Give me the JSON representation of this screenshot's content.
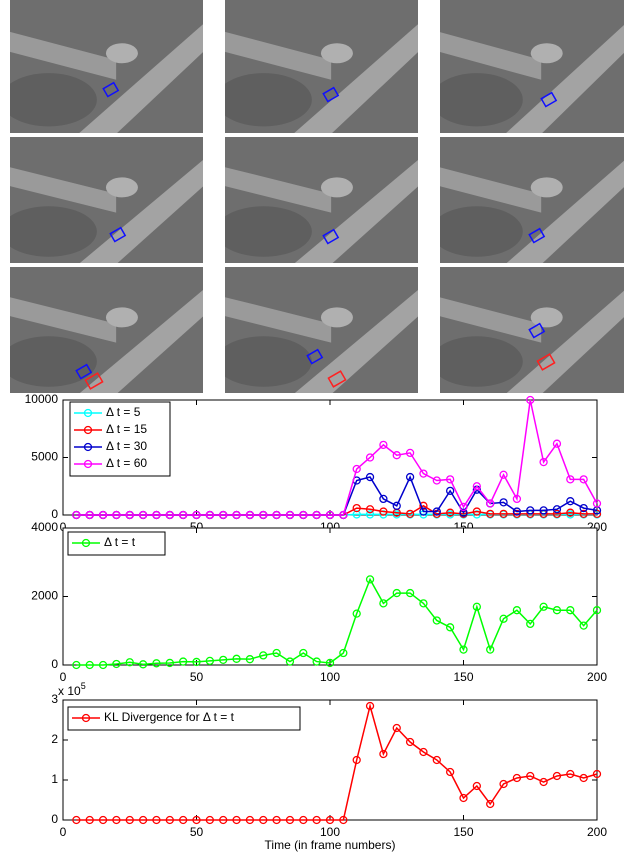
{
  "chart_data": [
    {
      "type": "line",
      "x": [
        5,
        10,
        15,
        20,
        25,
        30,
        35,
        40,
        45,
        50,
        55,
        60,
        65,
        70,
        75,
        80,
        85,
        90,
        95,
        100,
        105,
        110,
        115,
        120,
        125,
        130,
        135,
        140,
        145,
        150,
        155,
        160,
        165,
        170,
        175,
        180,
        185,
        190,
        195,
        200
      ],
      "xlim": [
        0,
        200
      ],
      "xticks": [
        0,
        50,
        100,
        150,
        200
      ],
      "ylim": [
        0,
        10000
      ],
      "yticks": [
        0,
        5000,
        10000
      ],
      "legend": "upper left",
      "series": [
        {
          "name": "Δ t = 5",
          "color": "#00ffff",
          "values": [
            0,
            0,
            0,
            0,
            0,
            0,
            0,
            0,
            0,
            0,
            0,
            0,
            0,
            0,
            0,
            0,
            0,
            0,
            0,
            0,
            0,
            50,
            50,
            50,
            50,
            50,
            50,
            50,
            50,
            50,
            50,
            50,
            50,
            50,
            50,
            50,
            50,
            50,
            50,
            50
          ]
        },
        {
          "name": "Δ t = 15",
          "color": "#ff0000",
          "values": [
            0,
            0,
            0,
            0,
            0,
            0,
            0,
            0,
            0,
            0,
            0,
            0,
            0,
            0,
            0,
            0,
            0,
            0,
            0,
            0,
            0,
            600,
            500,
            300,
            200,
            100,
            800,
            100,
            200,
            100,
            300,
            100,
            100,
            100,
            100,
            100,
            100,
            200,
            100,
            100
          ]
        },
        {
          "name": "Δ t = 30",
          "color": "#0000cc",
          "values": [
            0,
            0,
            0,
            0,
            0,
            0,
            0,
            0,
            0,
            0,
            0,
            0,
            0,
            0,
            0,
            0,
            0,
            0,
            0,
            0,
            0,
            3000,
            3300,
            1400,
            800,
            3300,
            300,
            300,
            2100,
            200,
            2200,
            1000,
            1100,
            300,
            400,
            400,
            500,
            1200,
            600,
            400
          ]
        },
        {
          "name": "Δ t = 60",
          "color": "#ff00ff",
          "values": [
            0,
            0,
            0,
            0,
            0,
            0,
            0,
            0,
            0,
            0,
            0,
            0,
            0,
            0,
            0,
            0,
            0,
            0,
            0,
            0,
            0,
            4000,
            5000,
            6100,
            5200,
            5400,
            3600,
            3000,
            3100,
            700,
            2500,
            1000,
            3500,
            1400,
            10000,
            4600,
            6200,
            3100,
            3100,
            1000
          ]
        }
      ]
    },
    {
      "type": "line",
      "x": [
        5,
        10,
        15,
        20,
        25,
        30,
        35,
        40,
        45,
        50,
        55,
        60,
        65,
        70,
        75,
        80,
        85,
        90,
        95,
        100,
        105,
        110,
        115,
        120,
        125,
        130,
        135,
        140,
        145,
        150,
        155,
        160,
        165,
        170,
        175,
        180,
        185,
        190,
        195,
        200
      ],
      "xlim": [
        0,
        200
      ],
      "xticks": [
        0,
        50,
        100,
        150,
        200
      ],
      "ylim": [
        0,
        4000
      ],
      "yticks": [
        0,
        2000,
        4000
      ],
      "legend": "upper left",
      "series": [
        {
          "name": "Δ t = t",
          "color": "#00ff00",
          "values": [
            0,
            0,
            0,
            30,
            80,
            20,
            50,
            60,
            100,
            90,
            120,
            150,
            180,
            170,
            280,
            350,
            100,
            350,
            100,
            60,
            350,
            1500,
            2500,
            1800,
            2100,
            2100,
            1800,
            1300,
            1100,
            450,
            1700,
            450,
            1350,
            1600,
            1200,
            1700,
            1600,
            1600,
            1150,
            1600
          ]
        }
      ]
    },
    {
      "type": "line",
      "x": [
        5,
        10,
        15,
        20,
        25,
        30,
        35,
        40,
        45,
        50,
        55,
        60,
        65,
        70,
        75,
        80,
        85,
        90,
        95,
        100,
        105,
        110,
        115,
        120,
        125,
        130,
        135,
        140,
        145,
        150,
        155,
        160,
        165,
        170,
        175,
        180,
        185,
        190,
        195,
        200
      ],
      "xlim": [
        0,
        200
      ],
      "xticks": [
        0,
        50,
        100,
        150,
        200
      ],
      "ylim": [
        0,
        3
      ],
      "yticks": [
        0,
        1,
        2,
        3
      ],
      "legend": "upper left",
      "y_scale_label": {
        "base": "x 10",
        "exponent": "5"
      },
      "x_label": "Time (in frame numbers)",
      "series": [
        {
          "name": "KL Divergence for Δ t = t",
          "color": "#ff0000",
          "values": [
            0,
            0,
            0,
            0,
            0,
            0,
            0,
            0,
            0,
            0,
            0,
            0,
            0,
            0,
            0,
            0,
            0,
            0,
            0,
            0,
            0,
            1.5,
            2.85,
            1.65,
            2.3,
            1.95,
            1.7,
            1.5,
            1.2,
            0.55,
            0.85,
            0.4,
            0.9,
            1.05,
            1.1,
            0.95,
            1.1,
            1.15,
            1.05,
            1.15
          ]
        }
      ]
    }
  ]
}
